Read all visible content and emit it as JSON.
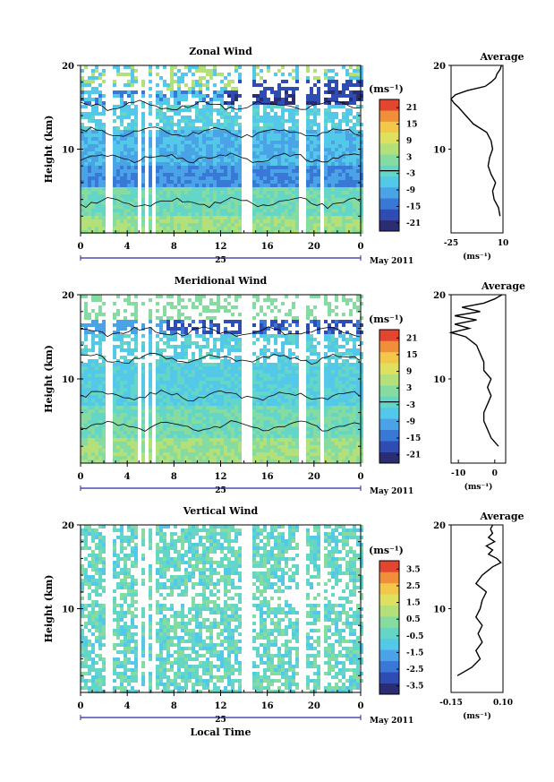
{
  "palette": [
    "#2b2d72",
    "#2f4cb3",
    "#3a78d8",
    "#4aa3e6",
    "#54c8e8",
    "#63d6c8",
    "#86dca0",
    "#b4e07a",
    "#e0e060",
    "#f3c84a",
    "#f08e3a",
    "#e4452f"
  ],
  "chart_data": [
    {
      "type": "heatmap",
      "title": "Zonal Wind",
      "ylabel": "Height (km)",
      "yticks": [
        "20",
        "10"
      ],
      "ylim": [
        0,
        20
      ],
      "xticks": [
        "0",
        "4",
        "8",
        "12",
        "16",
        "20",
        "0"
      ],
      "xlim": [
        0,
        24
      ],
      "date_day": "25",
      "date_month": "May 2011",
      "unit": "(ms⁻¹)",
      "colorbar_ticks": [
        "21",
        "15",
        "9",
        "3",
        "-3",
        "-9",
        "-15",
        "-21"
      ],
      "colorbar_range": [
        -24,
        24
      ],
      "average": {
        "title": "Average",
        "xticks": [
          "-25",
          "10"
        ],
        "xlim": [
          -25,
          10
        ],
        "xlabel": "(ms⁻¹)",
        "yticks": [
          "20",
          "10"
        ],
        "height_km": [
          2.0,
          3.0,
          4.0,
          5.0,
          6.0,
          7.0,
          8.0,
          9.0,
          10.0,
          11.0,
          12.0,
          13.0,
          14.0,
          15.0,
          15.5,
          16.0,
          16.5,
          17.0,
          17.5,
          18.0,
          18.5,
          19.0,
          19.5,
          20.0
        ],
        "wind": [
          8,
          7,
          4,
          3,
          5,
          2,
          0,
          1,
          3,
          2,
          -1,
          -10,
          -15,
          -20,
          -23,
          -25,
          -22,
          -14,
          -2,
          2,
          5,
          6,
          8,
          9
        ]
      }
    },
    {
      "type": "heatmap",
      "title": "Meridional Wind",
      "ylabel": "Height (km)",
      "yticks": [
        "20",
        "10"
      ],
      "ylim": [
        0,
        20
      ],
      "xticks": [
        "0",
        "4",
        "8",
        "12",
        "16",
        "20",
        "0"
      ],
      "xlim": [
        0,
        24
      ],
      "date_day": "25",
      "date_month": "May 2011",
      "unit": "(ms⁻¹)",
      "colorbar_ticks": [
        "21",
        "15",
        "9",
        "3",
        "-3",
        "-9",
        "-15",
        "-21"
      ],
      "colorbar_range": [
        -24,
        24
      ],
      "average": {
        "title": "Average",
        "xticks": [
          "-10",
          "0"
        ],
        "xlim": [
          -12,
          3
        ],
        "xlabel": "(ms⁻¹)",
        "yticks": [
          "20",
          "10"
        ],
        "height_km": [
          2.0,
          3.0,
          4.0,
          5.0,
          6.0,
          7.0,
          8.0,
          9.0,
          10.0,
          11.0,
          12.0,
          13.0,
          14.0,
          15.0,
          15.5,
          16.0,
          16.5,
          17.0,
          17.5,
          18.0,
          18.5,
          19.0,
          19.5,
          20.0
        ],
        "wind": [
          1,
          -1,
          -2,
          -3,
          -3,
          -2,
          -1,
          -2,
          -1,
          -3,
          -3,
          -4,
          -5,
          -8,
          -12,
          -7,
          -11,
          -5,
          -11,
          -4,
          -9,
          -3,
          0,
          2
        ]
      }
    },
    {
      "type": "heatmap",
      "title": "Vertical Wind",
      "ylabel": "Height (km)",
      "yticks": [
        "20",
        "10"
      ],
      "ylim": [
        0,
        20
      ],
      "xticks": [
        "0",
        "4",
        "8",
        "12",
        "16",
        "20",
        "0"
      ],
      "xlim": [
        0,
        24
      ],
      "date_day": "25",
      "date_month": "May 2011",
      "xlabel": "Local Time",
      "unit": "(ms⁻¹)",
      "colorbar_ticks": [
        "3.5",
        "2.5",
        "1.5",
        "0.5",
        "-0.5",
        "-1.5",
        "-2.5",
        "-3.5"
      ],
      "colorbar_range": [
        -4,
        4
      ],
      "average": {
        "title": "Average",
        "xticks": [
          "-0.15",
          "0.10"
        ],
        "xlim": [
          -0.15,
          0.1
        ],
        "xlabel": "(ms⁻¹)",
        "yticks": [
          "20",
          "10"
        ],
        "height_km": [
          2.0,
          3.0,
          4.0,
          5.0,
          6.0,
          7.0,
          8.0,
          9.0,
          10.0,
          11.0,
          12.0,
          13.0,
          14.0,
          15.0,
          15.5,
          16.0,
          16.5,
          17.0,
          17.5,
          18.0,
          18.5,
          19.0,
          19.5,
          20.0
        ],
        "wind": [
          -0.12,
          -0.05,
          -0.01,
          -0.03,
          0.0,
          -0.02,
          0.0,
          -0.03,
          -0.01,
          0.0,
          0.02,
          -0.03,
          0.0,
          0.05,
          0.09,
          0.07,
          0.03,
          0.05,
          0.02,
          0.06,
          0.03,
          0.05,
          0.04,
          0.05
        ]
      }
    }
  ]
}
